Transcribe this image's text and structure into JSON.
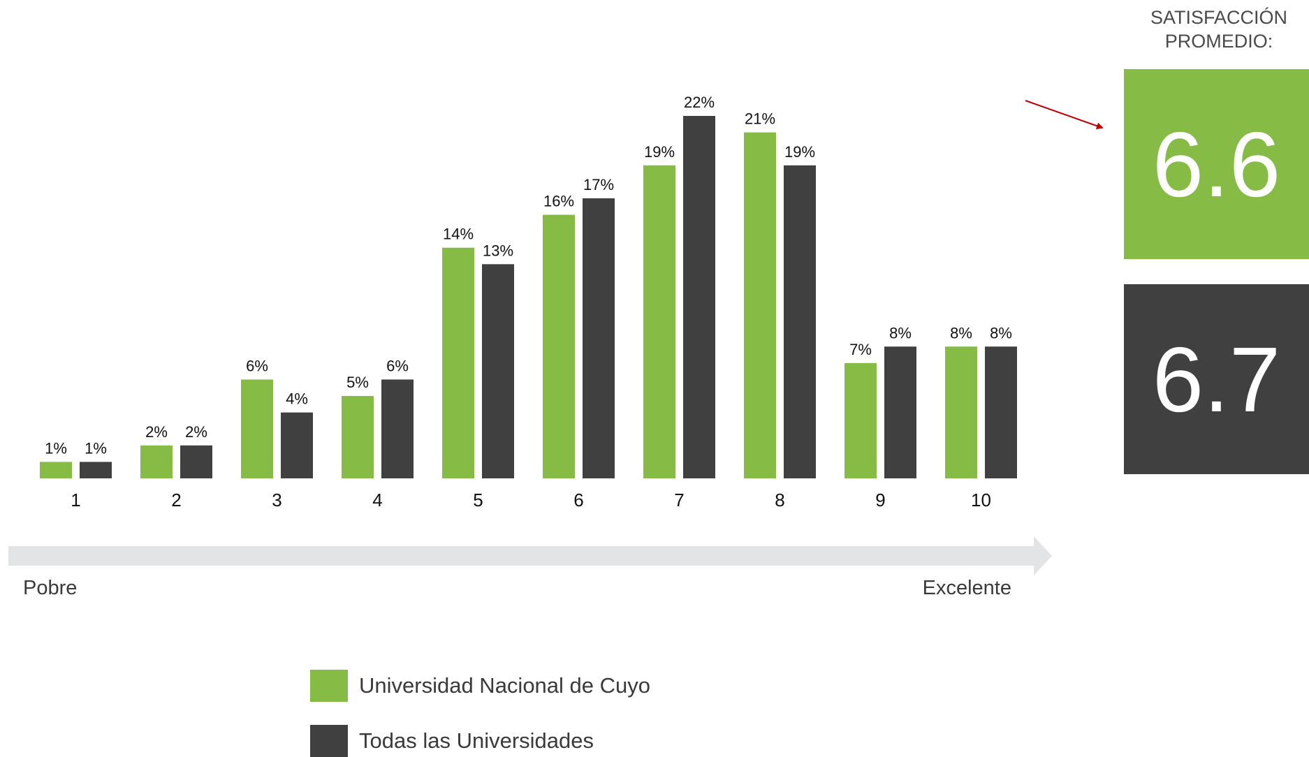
{
  "chart_data": {
    "type": "bar",
    "categories": [
      "1",
      "2",
      "3",
      "4",
      "5",
      "6",
      "7",
      "8",
      "9",
      "10"
    ],
    "series": [
      {
        "name": "Universidad Nacional de Cuyo",
        "color": "#86BC45",
        "values": [
          1,
          2,
          6,
          5,
          14,
          16,
          19,
          21,
          7,
          8
        ],
        "labels": [
          "1%",
          "2%",
          "6%",
          "5%",
          "14%",
          "16%",
          "19%",
          "21%",
          "7%",
          "8%"
        ]
      },
      {
        "name": "Todas las Universidades",
        "color": "#404040",
        "values": [
          1,
          2,
          4,
          6,
          13,
          17,
          22,
          19,
          8,
          8
        ],
        "labels": [
          "1%",
          "2%",
          "4%",
          "6%",
          "13%",
          "17%",
          "22%",
          "19%",
          "8%",
          "8%"
        ]
      }
    ],
    "ylim": [
      0,
      22
    ],
    "grid": false,
    "legend_position": "bottom"
  },
  "scale": {
    "low": "Pobre",
    "high": "Excelente"
  },
  "summary": {
    "title_line1": "SATISFACCIÓN",
    "title_line2": "PROMEDIO:",
    "value_1": "6.6",
    "value_2": "6.7",
    "color_1": "#86BC45",
    "color_2": "#404040"
  },
  "legend": {
    "item_1": "Universidad Nacional de Cuyo",
    "item_2": "Todas las Universidades"
  },
  "colors": {
    "arrow_band": "#E3E4E6",
    "pointer": "#C00000"
  }
}
